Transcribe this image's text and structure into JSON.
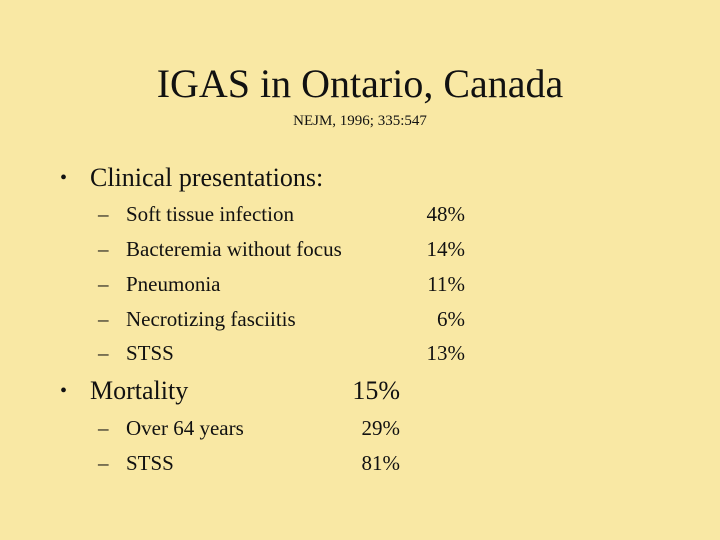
{
  "slide": {
    "title": "IGAS in Ontario, Canada",
    "citation": "NEJM, 1996; 335:547",
    "bullet_char": "•",
    "dash_char": "–",
    "sections": [
      {
        "heading": "Clinical presentations:",
        "value": "",
        "items": [
          {
            "label": "Soft tissue infection",
            "value": "48%"
          },
          {
            "label": "Bacteremia without focus",
            "value": "14%"
          },
          {
            "label": "Pneumonia",
            "value": "11%"
          },
          {
            "label": "Necrotizing fasciitis",
            "value": "6%"
          },
          {
            "label": "STSS",
            "value": "13%"
          }
        ]
      },
      {
        "heading": "Mortality",
        "value": "15%",
        "items": [
          {
            "label": "Over 64 years",
            "value": "29%"
          },
          {
            "label": "STSS",
            "value": "81%"
          }
        ]
      }
    ]
  }
}
